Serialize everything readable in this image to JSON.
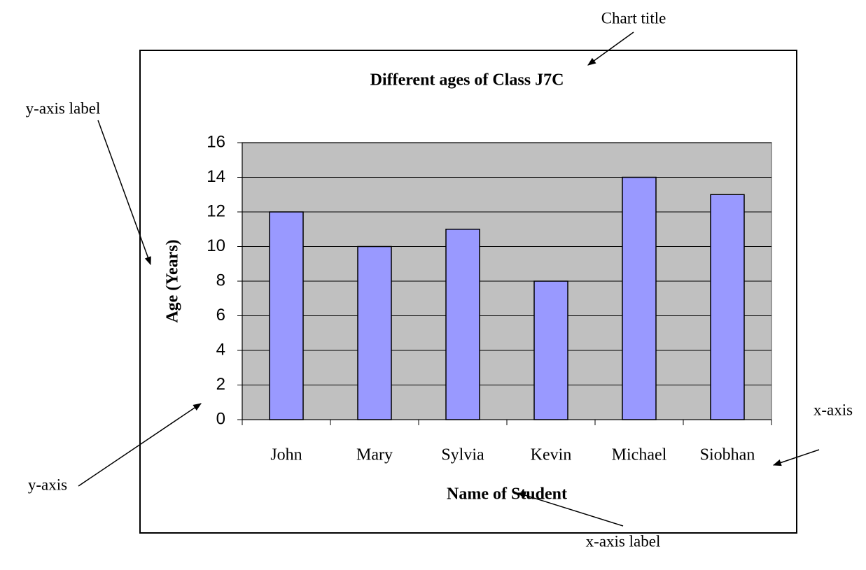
{
  "chart_data": {
    "type": "bar",
    "title": "Different ages of Class J7C",
    "x_label": "Name of Student",
    "y_label": "Age (Years)",
    "categories": [
      "John",
      "Mary",
      "Sylvia",
      "Kevin",
      "Michael",
      "Siobhan"
    ],
    "values": [
      12,
      10,
      11,
      8,
      14,
      13
    ],
    "color": "#9999ff",
    "ylim": [
      0,
      16
    ],
    "yticks": [
      0,
      2,
      4,
      6,
      8,
      10,
      12,
      14,
      16
    ],
    "grid": true,
    "annotations": [
      "Chart title",
      "y-axis label",
      "y-axis",
      "x-axis",
      "x-axis label"
    ]
  }
}
